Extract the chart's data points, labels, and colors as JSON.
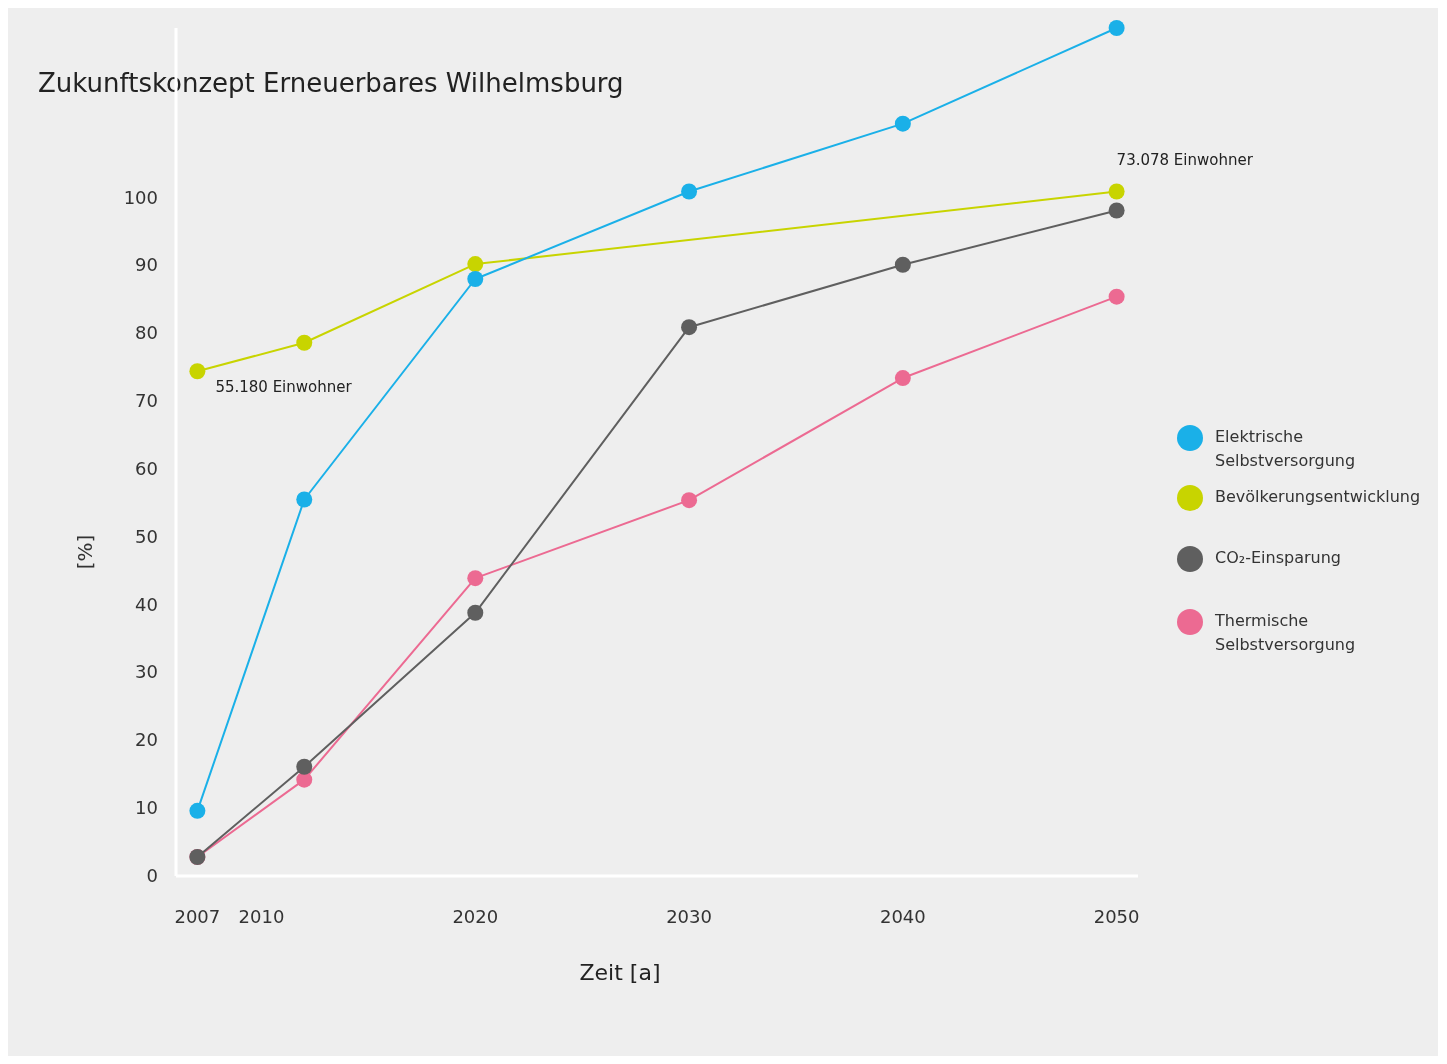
{
  "chart_data": {
    "type": "line",
    "title": "Zukunftskonzept  Erneuerbares Wilhelmsburg",
    "xlabel": "Zeit [a]",
    "ylabel": "[%]",
    "xlim": [
      2006,
      2051
    ],
    "xticks": [
      2007,
      2010,
      2020,
      2030,
      2040,
      2050
    ],
    "ylim": [
      0,
      125
    ],
    "yticks": [
      0,
      10,
      20,
      30,
      40,
      50,
      60,
      70,
      80,
      90,
      100
    ],
    "grid": false,
    "legend": "right",
    "marker": "circle",
    "line_style": "solid",
    "series": [
      {
        "name": "Elektrische Selbstversorgung",
        "color": "#1ab0e8",
        "x": [
          2007,
          2012,
          2020,
          2030,
          2040,
          2050
        ],
        "values": [
          9.6,
          55.5,
          88,
          100.9,
          110.9,
          125
        ]
      },
      {
        "name": "Bevölkerungsentwicklung",
        "color": "#c8d400",
        "x": [
          2007,
          2012,
          2020,
          2050
        ],
        "values": [
          74.4,
          78.6,
          90.2,
          100.9
        ]
      },
      {
        "name": "CO₂-Einsparung",
        "color": "#5f5f5f",
        "x": [
          2007,
          2012,
          2020,
          2030,
          2040,
          2050
        ],
        "values": [
          2.8,
          16.1,
          38.8,
          80.9,
          90.1,
          98.1
        ]
      },
      {
        "name": "Thermische Selbstversorgung",
        "color": "#ec6a92",
        "x": [
          2007,
          2012,
          2020,
          2030,
          2040,
          2050
        ],
        "values": [
          2.8,
          14.2,
          43.9,
          55.4,
          73.4,
          85.4
        ]
      }
    ],
    "annotations": [
      {
        "text": "55.180 Einwohner",
        "x": 2007,
        "y": 74.4
      },
      {
        "text": "73.078 Einwohner",
        "x": 2050,
        "y": 100.9
      }
    ]
  }
}
